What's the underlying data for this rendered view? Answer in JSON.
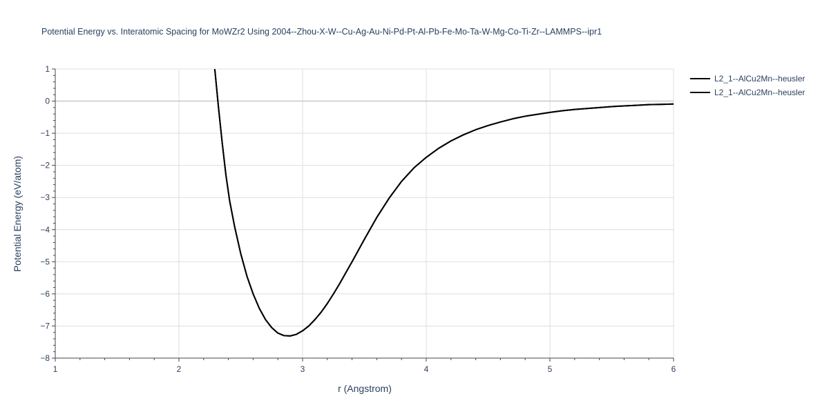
{
  "chart_data": {
    "type": "line",
    "title": "Potential Energy vs. Interatomic Spacing for MoWZr2 Using 2004--Zhou-X-W--Cu-Ag-Au-Ni-Pd-Pt-Al-Pb-Fe-Mo-Ta-W-Mg-Co-Ti-Zr--LAMMPS--ipr1",
    "xlabel": "r (Angstrom)",
    "ylabel": "Potential Energy (eV/atom)",
    "xlim": [
      1,
      6
    ],
    "ylim": [
      -8,
      1
    ],
    "xticks": [
      1,
      2,
      3,
      4,
      5,
      6
    ],
    "yticks": [
      1,
      0,
      -1,
      -2,
      -3,
      -4,
      -5,
      -6,
      -7,
      -8
    ],
    "xtick_labels": [
      "1",
      "2",
      "3",
      "4",
      "5",
      "6"
    ],
    "ytick_labels": [
      "1",
      "0",
      "−1",
      "−2",
      "−3",
      "−4",
      "−5",
      "−6",
      "−7",
      "−8"
    ],
    "grid": true,
    "legend_position": "top-right",
    "series": [
      {
        "name": "L2_1--AlCu2Mn--heusler",
        "color": "#000000",
        "x": [
          2.29,
          2.32,
          2.35,
          2.38,
          2.41,
          2.45,
          2.5,
          2.55,
          2.6,
          2.65,
          2.7,
          2.75,
          2.8,
          2.85,
          2.9,
          2.95,
          3.0,
          3.05,
          3.1,
          3.15,
          3.2,
          3.25,
          3.3,
          3.4,
          3.5,
          3.6,
          3.7,
          3.8,
          3.9,
          4.0,
          4.1,
          4.2,
          4.3,
          4.4,
          4.5,
          4.6,
          4.7,
          4.8,
          4.9,
          5.0,
          5.1,
          5.2,
          5.3,
          5.4,
          5.5,
          5.6,
          5.7,
          5.8,
          5.9,
          6.0
        ],
        "y": [
          1.0,
          -0.2,
          -1.3,
          -2.3,
          -3.1,
          -3.9,
          -4.75,
          -5.45,
          -6.0,
          -6.45,
          -6.8,
          -7.05,
          -7.22,
          -7.3,
          -7.31,
          -7.26,
          -7.15,
          -7.0,
          -6.8,
          -6.57,
          -6.3,
          -6.0,
          -5.68,
          -5.0,
          -4.3,
          -3.62,
          -3.02,
          -2.5,
          -2.08,
          -1.75,
          -1.47,
          -1.24,
          -1.05,
          -0.89,
          -0.76,
          -0.65,
          -0.55,
          -0.47,
          -0.41,
          -0.35,
          -0.3,
          -0.26,
          -0.23,
          -0.2,
          -0.17,
          -0.15,
          -0.13,
          -0.11,
          -0.1,
          -0.09
        ]
      },
      {
        "name": "L2_1--AlCu2Mn--heusler",
        "color": "#000000",
        "x": [
          2.29,
          2.32,
          2.35,
          2.38,
          2.41,
          2.45,
          2.5,
          2.55,
          2.6,
          2.65,
          2.7,
          2.75,
          2.8,
          2.85,
          2.9,
          2.95,
          3.0,
          3.05,
          3.1,
          3.15,
          3.2,
          3.25,
          3.3,
          3.4,
          3.5,
          3.6,
          3.7,
          3.8,
          3.9,
          4.0,
          4.1,
          4.2,
          4.3,
          4.4,
          4.5,
          4.6,
          4.7,
          4.8,
          4.9,
          5.0,
          5.1,
          5.2,
          5.3,
          5.4,
          5.5,
          5.6,
          5.7,
          5.8,
          5.9,
          6.0
        ],
        "y": [
          1.0,
          -0.2,
          -1.3,
          -2.3,
          -3.1,
          -3.9,
          -4.75,
          -5.45,
          -6.0,
          -6.45,
          -6.8,
          -7.05,
          -7.22,
          -7.3,
          -7.31,
          -7.26,
          -7.15,
          -7.0,
          -6.8,
          -6.57,
          -6.3,
          -6.0,
          -5.68,
          -5.0,
          -4.3,
          -3.62,
          -3.02,
          -2.5,
          -2.08,
          -1.75,
          -1.47,
          -1.24,
          -1.05,
          -0.89,
          -0.76,
          -0.65,
          -0.55,
          -0.47,
          -0.41,
          -0.35,
          -0.3,
          -0.26,
          -0.23,
          -0.2,
          -0.17,
          -0.15,
          -0.13,
          -0.11,
          -0.1,
          -0.09
        ]
      }
    ]
  }
}
